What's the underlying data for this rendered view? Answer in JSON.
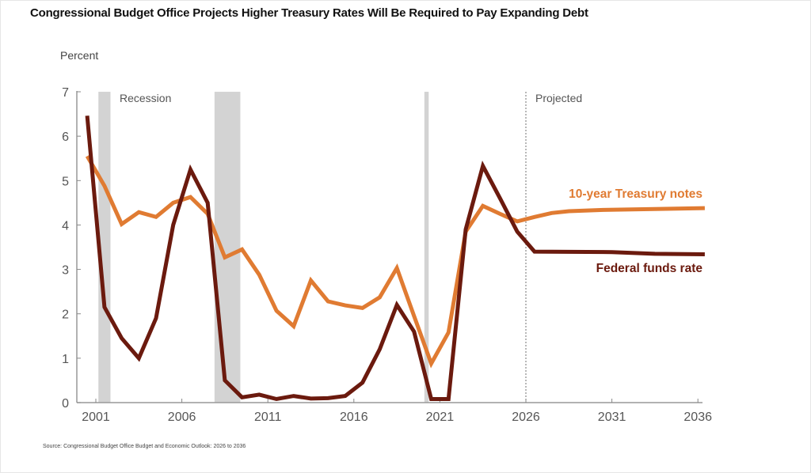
{
  "title": "Congressional Budget Office Projects Higher Treasury  Rates Will Be Required to Pay Expanding Debt",
  "source": "Source: Congressional Budget Office Budget and Economic Outlook: 2026 to 2036",
  "chart_data": {
    "type": "line",
    "title": "Congressional Budget Office Projects Higher Treasury  Rates Will Be Required to Pay Expanding Debt",
    "xlabel": "",
    "ylabel": "Percent",
    "xlim": [
      2000.45,
      2036.4
    ],
    "ylim": [
      0,
      7
    ],
    "x_ticks": [
      2001,
      2006,
      2011,
      2016,
      2021,
      2026,
      2031,
      2036
    ],
    "x_tick_labels": [
      "2001",
      "2006",
      "2011",
      "2016",
      "2021",
      "2026",
      "2031",
      "2036"
    ],
    "y_ticks": [
      0,
      1,
      2,
      3,
      4,
      5,
      6,
      7
    ],
    "y_tick_labels": [
      "0",
      "1",
      "2",
      "3",
      "4",
      "5",
      "6",
      "7"
    ],
    "grid": false,
    "legend": "inline-right",
    "annotations": {
      "recession_label": "Recession",
      "projected_label": "Projected",
      "projected_start": 2026
    },
    "recessions": [
      {
        "start": 2001.15,
        "end": 2001.85
      },
      {
        "start": 2007.9,
        "end": 2009.4
      },
      {
        "start": 2020.1,
        "end": 2020.35
      }
    ],
    "series": [
      {
        "name": "10-year Treasury notes",
        "color": "#E07B32",
        "x": [
          2000.5,
          2001.5,
          2002.5,
          2003.5,
          2004.5,
          2005.5,
          2006.5,
          2007.5,
          2008.5,
          2009.5,
          2010.5,
          2011.5,
          2012.5,
          2013.5,
          2014.5,
          2015.5,
          2016.5,
          2017.5,
          2018.5,
          2019.5,
          2020.5,
          2021.5,
          2022.5,
          2023.5,
          2024.5,
          2025.5,
          2026.5,
          2027.5,
          2028.5,
          2030.5,
          2033.5,
          2036.4
        ],
        "values": [
          5.55,
          4.88,
          4.02,
          4.29,
          4.18,
          4.5,
          4.63,
          4.25,
          3.27,
          3.45,
          2.88,
          2.07,
          1.72,
          2.75,
          2.28,
          2.19,
          2.13,
          2.37,
          3.03,
          1.95,
          0.88,
          1.58,
          3.85,
          4.43,
          4.25,
          4.08,
          4.18,
          4.27,
          4.31,
          4.34,
          4.36,
          4.38
        ]
      },
      {
        "name": "Federal funds rate",
        "color": "#6B1A0E",
        "x": [
          2000.5,
          2001.5,
          2002.5,
          2003.5,
          2004.5,
          2005.5,
          2006.5,
          2007.5,
          2008.5,
          2009.5,
          2010.5,
          2011.5,
          2012.5,
          2013.5,
          2014.5,
          2015.5,
          2016.5,
          2017.5,
          2018.5,
          2019.5,
          2020.5,
          2021.5,
          2022.5,
          2023.5,
          2024.5,
          2025.5,
          2026.5,
          2031.0,
          2033.5,
          2036.4
        ],
        "values": [
          6.46,
          2.15,
          1.45,
          1.0,
          1.9,
          4.0,
          5.25,
          4.5,
          0.5,
          0.12,
          0.18,
          0.08,
          0.15,
          0.09,
          0.1,
          0.15,
          0.45,
          1.2,
          2.2,
          1.6,
          0.08,
          0.08,
          3.9,
          5.33,
          4.6,
          3.85,
          3.4,
          3.39,
          3.35,
          3.34
        ]
      }
    ]
  }
}
